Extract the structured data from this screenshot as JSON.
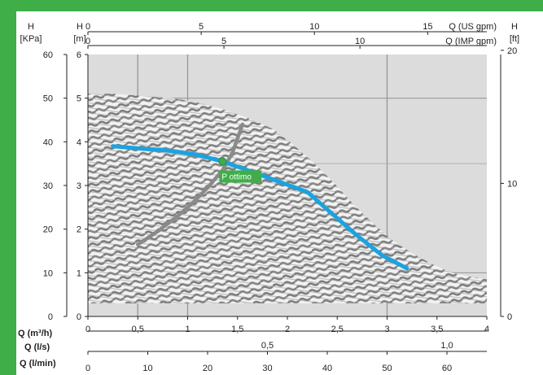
{
  "chart_data": {
    "type": "line",
    "axes": {
      "left_h_kpa": {
        "unit_line1": "H",
        "unit_line2": "[KPa]",
        "ticks": [
          "0",
          "10",
          "20",
          "30",
          "40",
          "50",
          "60"
        ],
        "ylim": [
          0,
          60
        ]
      },
      "left_h_m": {
        "unit_line1": "H",
        "unit_line2": "[m]",
        "ticks": [
          "0",
          "1",
          "2",
          "3",
          "4",
          "5",
          "6"
        ],
        "ylim": [
          0,
          6
        ]
      },
      "right_h_ft": {
        "unit_line1": "H",
        "unit_line2": "[ft]",
        "ticks": [
          "0",
          "10",
          "20"
        ],
        "ylim": [
          0,
          20
        ]
      },
      "bottom_q_m3h": {
        "label": "Q (m³/h)",
        "ticks": [
          "0",
          "0,5",
          "1",
          "1,5",
          "2",
          "2,5",
          "3",
          "3,5",
          "4"
        ],
        "xlim": [
          0,
          4
        ]
      },
      "bottom_q_ls": {
        "label": "Q (l/s)",
        "ticks": [
          "0,5",
          "1,0"
        ]
      },
      "bottom_q_lmin": {
        "label": "Q (l/min)",
        "ticks": [
          "0",
          "10",
          "20",
          "30",
          "40",
          "50",
          "60"
        ]
      },
      "top_q_usgpm": {
        "label": "Q (US gpm)",
        "ticks": [
          "0",
          "5",
          "10",
          "15"
        ]
      },
      "top_q_impgpm": {
        "label": "Q (IMP gpm)",
        "ticks": [
          "0",
          "5",
          "10"
        ]
      }
    },
    "series": [
      {
        "name": "",
        "color": "#1aa3e0",
        "x": [
          0.25,
          0.5,
          0.8,
          1.1,
          1.35,
          1.6,
          1.9,
          2.2,
          2.45,
          2.7,
          2.95,
          3.2
        ],
        "y": [
          3.9,
          3.85,
          3.8,
          3.7,
          3.55,
          3.35,
          3.1,
          2.85,
          2.35,
          1.85,
          1.4,
          1.1
        ]
      },
      {
        "name": "",
        "color": "#8a8a8a",
        "x": [
          0.5,
          0.7,
          0.9,
          1.05,
          1.2,
          1.35,
          1.45,
          1.55
        ],
        "y": [
          1.65,
          1.95,
          2.3,
          2.6,
          2.95,
          3.35,
          3.75,
          4.4
        ]
      }
    ],
    "envelope": {
      "x": [
        0,
        0.25,
        0.55,
        0.85,
        1.1,
        1.35,
        1.6,
        1.85,
        2.05,
        2.25,
        2.45,
        2.65,
        2.85,
        3.05,
        3.25,
        3.45,
        3.65,
        3.85,
        4.0,
        4.0,
        0
      ],
      "y": [
        5.1,
        5.1,
        5.05,
        5.0,
        4.9,
        4.75,
        4.55,
        4.3,
        3.95,
        3.55,
        3.1,
        2.6,
        2.15,
        1.75,
        1.45,
        1.2,
        1.0,
        0.9,
        0.85,
        0.3,
        0.3
      ]
    },
    "optimum_point": {
      "label": "P ottimo",
      "x": 1.35,
      "y": 3.55,
      "color": "#3fae49"
    },
    "grid": true
  }
}
